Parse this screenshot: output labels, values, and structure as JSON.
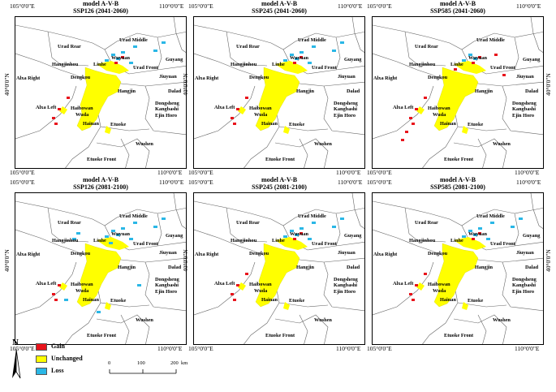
{
  "panels": [
    {
      "model": "model A-V-B",
      "scenario": "SSP126 (2041-2060)",
      "variant": "mixed"
    },
    {
      "model": "model A-V-B",
      "scenario": "SSP245 (2041-2060)",
      "variant": "mixed"
    },
    {
      "model": "model A-V-B",
      "scenario": "SSP585 (2041-2060)",
      "variant": "gain"
    },
    {
      "model": "model A-V-B",
      "scenario": "SSP126 (2081-2100)",
      "variant": "loss"
    },
    {
      "model": "model A-V-B",
      "scenario": "SSP245 (2081-2100)",
      "variant": "mixed"
    },
    {
      "model": "model A-V-B",
      "scenario": "SSP585 (2081-2100)",
      "variant": "mixed"
    }
  ],
  "places": {
    "urad_rear": "Urad Rear",
    "urad_middle": "Urad Middle",
    "hanjinhou": "Hangjinhou",
    "linhe": "Linhe",
    "wuyuan": "Wuyuan",
    "urad_front": "Urad Front",
    "guyang": "Guyang",
    "jiuyuan": "Jiuyuan",
    "dengkou": "Dengkou",
    "alxa_right": "Alxa Right",
    "hangjin": "Hangjin",
    "dalad": "Dalad",
    "alxa_left": "Alxa Left",
    "haibowan": "Haibowan",
    "wuda": "Wuda",
    "dongsheng": "Dongsheng",
    "kangbashi": "Kangbashi",
    "ejin_horo": "Ejin Horo",
    "hainan": "Hainan",
    "etuoke": "Etuoke",
    "wushen": "Wushen",
    "etuoke_front": "Etuoke Front"
  },
  "coords": {
    "lon105": "105°0'0\"E",
    "lon110": "110°0'0\"E",
    "lat40": "40°0'0\"N"
  },
  "legend": {
    "gain": "Gain",
    "unchanged": "Unchanged",
    "loss": "Loss"
  },
  "colors": {
    "gain": "#e8141c",
    "unchanged": "#ffff00",
    "loss": "#2ab7e6"
  },
  "north_arrow": "N",
  "scale": {
    "t0": "0",
    "t1": "100",
    "t2": "200",
    "unit": "km"
  }
}
